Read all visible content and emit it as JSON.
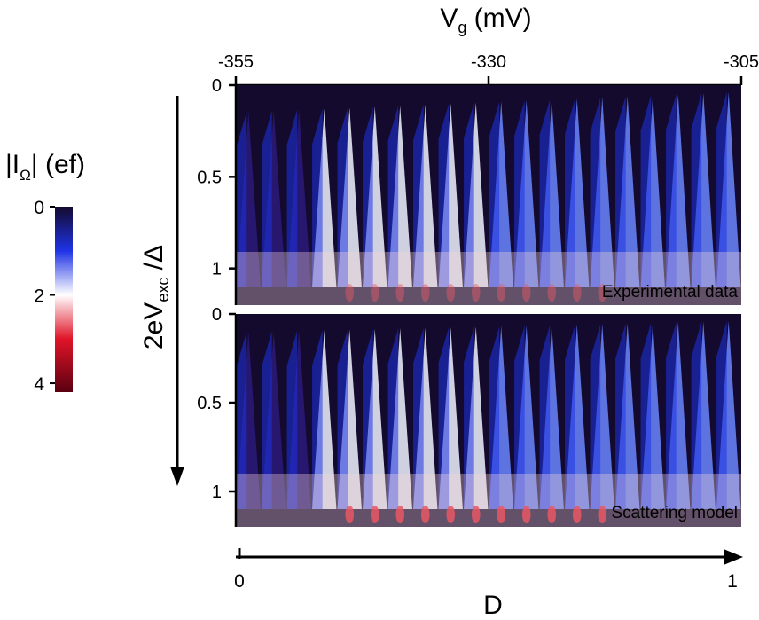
{
  "chart_data": {
    "type": "heatmap",
    "top_axis": {
      "label": "V",
      "label_sub": "g",
      "label_unit": " (mV)",
      "ticks": [
        -355,
        -330,
        -305
      ],
      "range": [
        -355,
        -305
      ]
    },
    "bottom_axis": {
      "label": "D",
      "ticks": [
        0,
        1
      ],
      "range": [
        0,
        1
      ]
    },
    "y_axis": {
      "label_prefix": "2eV",
      "label_sub": "exc",
      "label_suffix": " /",
      "label_symbol": "Δ",
      "ticks": [
        0,
        0.5,
        1
      ],
      "range": [
        0,
        1.2
      ]
    },
    "colorbar": {
      "title_base": "|I",
      "title_sub": "Ω",
      "title_rest": "| (ef)",
      "ticks": [
        0,
        2,
        4
      ],
      "range": [
        0,
        4.2
      ],
      "stops": [
        {
          "value": 0,
          "color": "#140a2e"
        },
        {
          "value": 1,
          "color": "#1e33e6"
        },
        {
          "value": 2,
          "color": "#ffffff"
        },
        {
          "value": 3,
          "color": "#e01428"
        },
        {
          "value": 4.2,
          "color": "#5a0010"
        }
      ]
    },
    "panels": [
      {
        "name": "Experimental data",
        "lobes": 20
      },
      {
        "name": "Scattering model",
        "lobes": 20
      }
    ],
    "grid": false
  }
}
